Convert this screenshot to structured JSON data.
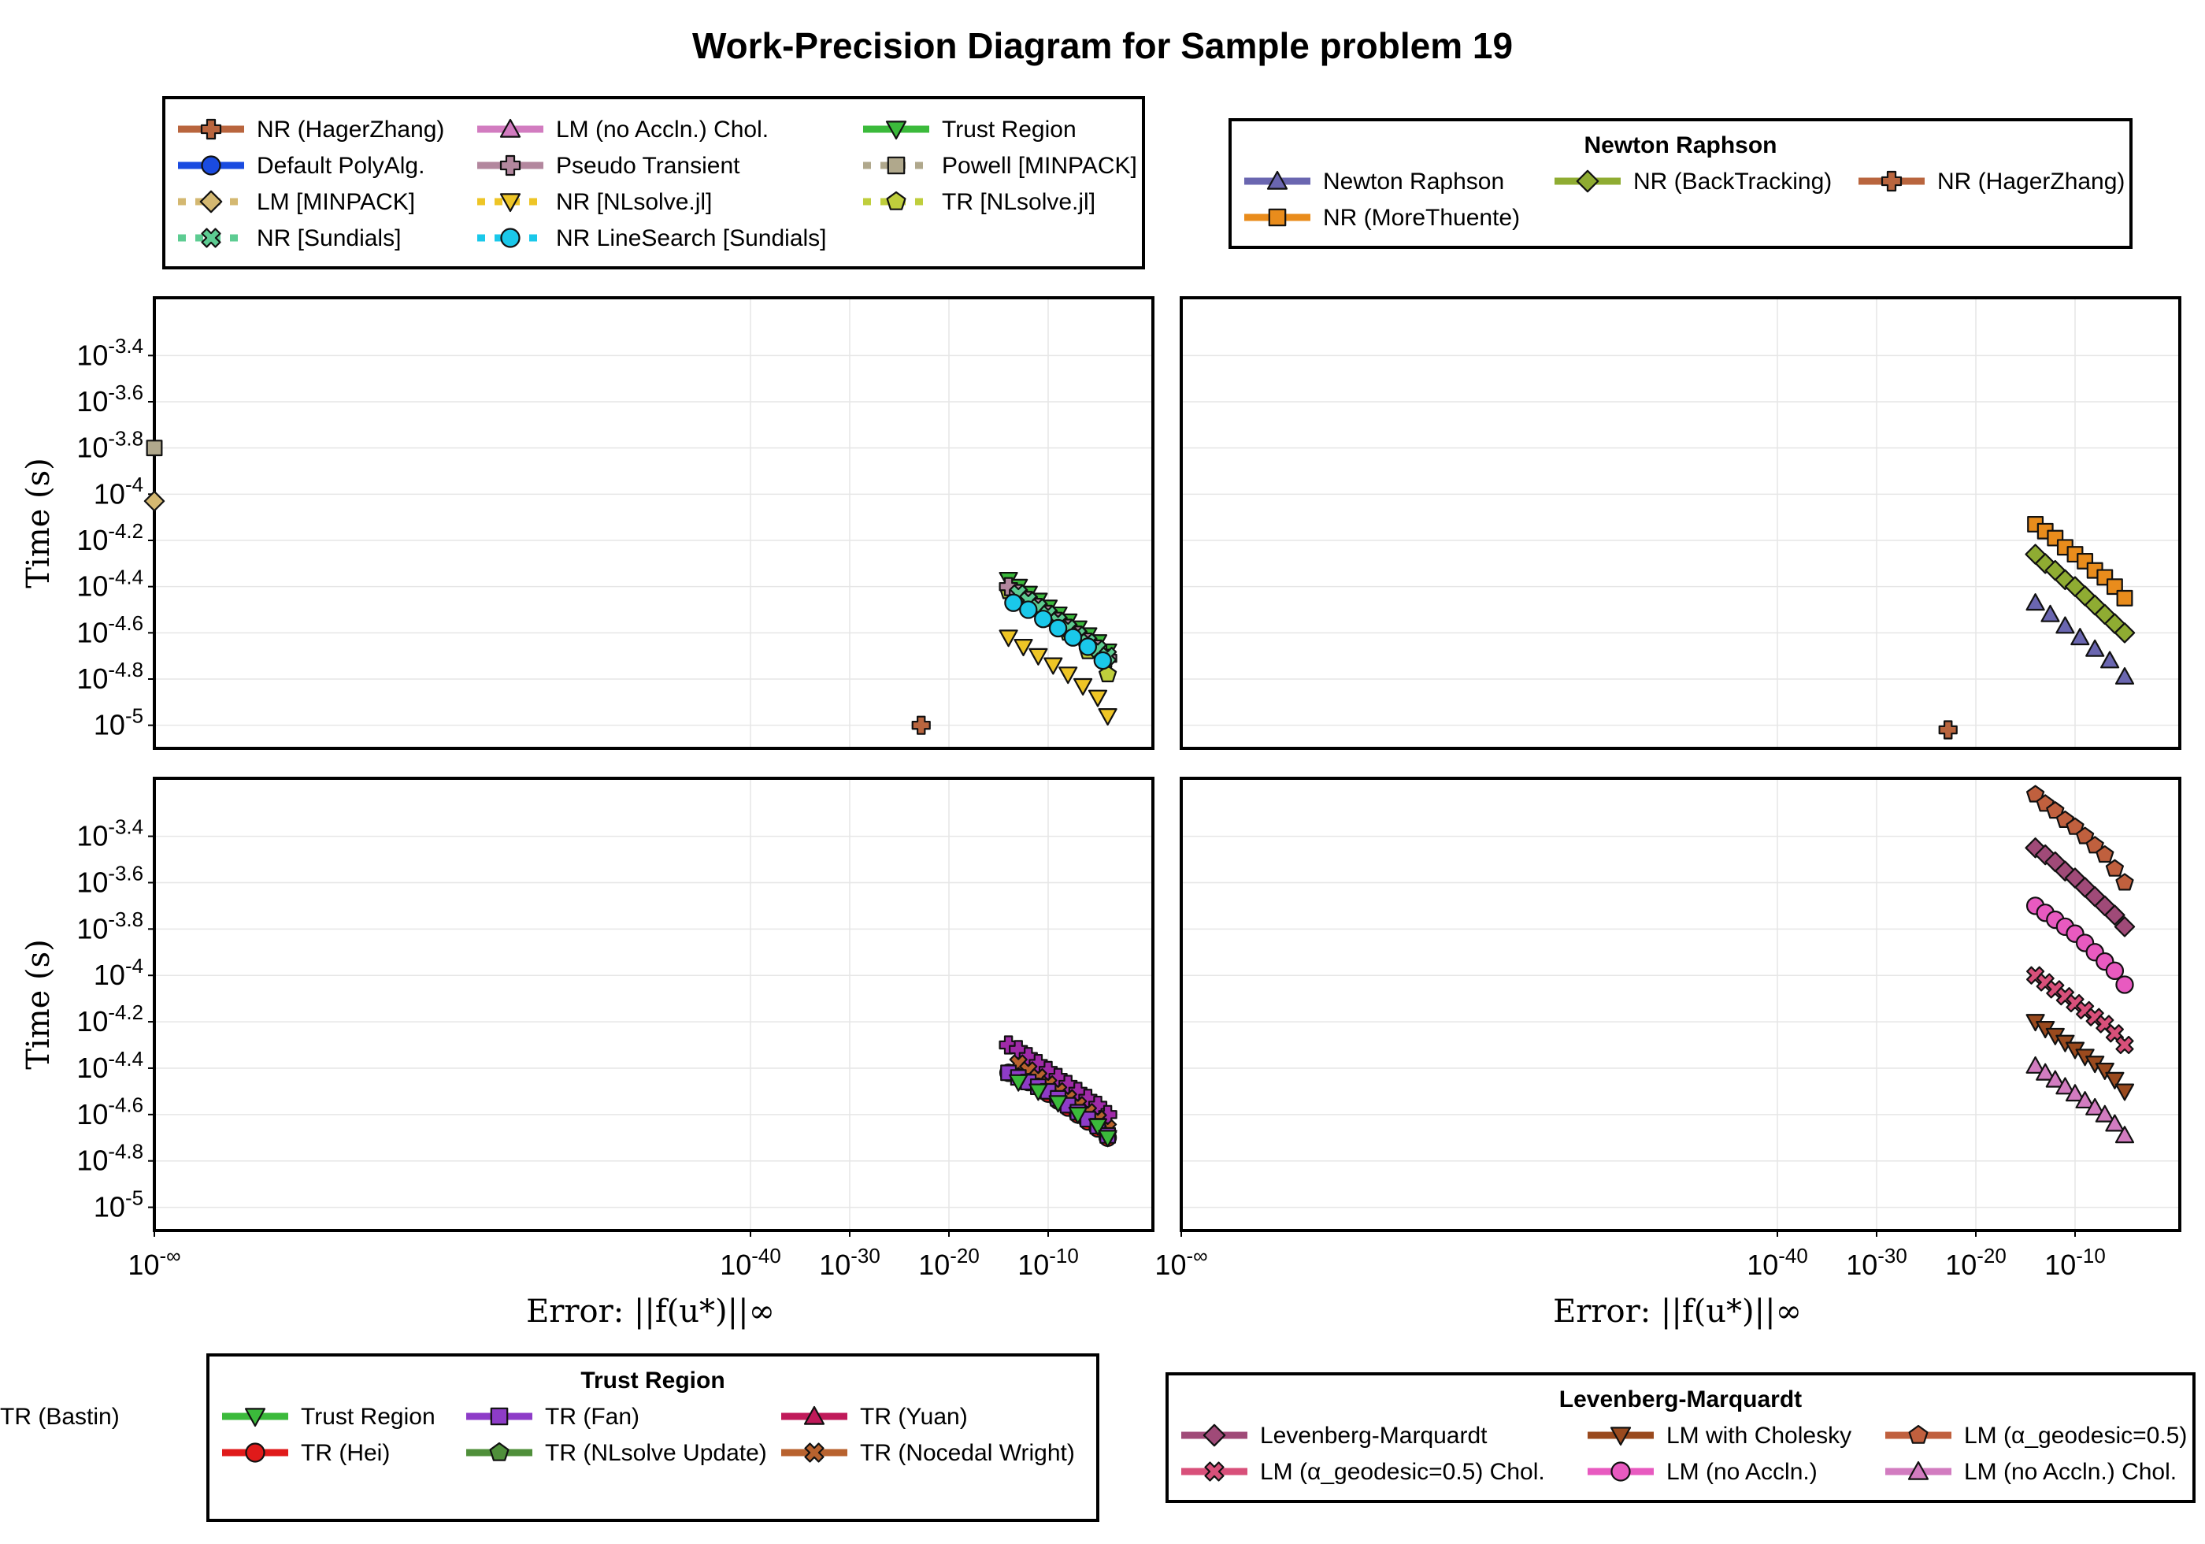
{
  "chart_data": {
    "title": "Work-Precision Diagram for Sample problem 19",
    "type": "scatter",
    "x_scale": "log10",
    "y_scale": "log10",
    "grid": true,
    "xlabel": "Error: ||f(u*)||∞",
    "ylabel": "Time (s)",
    "x_ticks": [
      {
        "value": "-inf",
        "label": "10^-∞"
      },
      {
        "value": -40,
        "label": "10^-40"
      },
      {
        "value": -30,
        "label": "10^-30"
      },
      {
        "value": -20,
        "label": "10^-20"
      },
      {
        "value": -10,
        "label": "10^-10"
      }
    ],
    "legends": {
      "top_left": {
        "title": "",
        "placement": "top-left",
        "entries": [
          {
            "label": "NR (HagerZhang)",
            "color": "#b9653e",
            "marker": "cross",
            "dashed": false
          },
          {
            "label": "Default PolyAlg.",
            "color": "#1a4be0",
            "marker": "circle",
            "dashed": false
          },
          {
            "label": "LM [MINPACK]",
            "color": "#d4b871",
            "marker": "diamond",
            "dashed": true
          },
          {
            "label": "NR [Sundials]",
            "color": "#5dcc92",
            "marker": "xcross",
            "dashed": true
          },
          {
            "label": "LM (no Accln.) Chol.",
            "color": "#d27cc0",
            "marker": "triangle-up",
            "dashed": false
          },
          {
            "label": "Pseudo Transient",
            "color": "#b3879e",
            "marker": "cross",
            "dashed": false
          },
          {
            "label": "NR [NLsolve.jl]",
            "color": "#eec526",
            "marker": "triangle-down",
            "dashed": true
          },
          {
            "label": "NR LineSearch [Sundials]",
            "color": "#1ac8ea",
            "marker": "circle",
            "dashed": true
          },
          {
            "label": "Trust Region",
            "color": "#3bba3b",
            "marker": "triangle-down",
            "dashed": false
          },
          {
            "label": "Powell [MINPACK]",
            "color": "#b0a88c",
            "marker": "square",
            "dashed": true
          },
          {
            "label": "TR [NLsolve.jl]",
            "color": "#bfce3c",
            "marker": "pentagon",
            "dashed": true
          }
        ]
      },
      "top_right": {
        "title": "Newton Raphson",
        "placement": "top-right",
        "entries": [
          {
            "label": "Newton Raphson",
            "color": "#6a66b0",
            "marker": "triangle-up",
            "dashed": false
          },
          {
            "label": "NR (BackTracking)",
            "color": "#8fac32",
            "marker": "diamond",
            "dashed": false
          },
          {
            "label": "NR (HagerZhang)",
            "color": "#b9653e",
            "marker": "cross",
            "dashed": false
          },
          {
            "label": "NR (MoreThuente)",
            "color": "#e98c1c",
            "marker": "square",
            "dashed": false
          }
        ]
      },
      "bottom_left": {
        "title": "Trust Region",
        "placement": "bottom-left",
        "entries": [
          {
            "label": "Trust Region",
            "color": "#3bba3b",
            "marker": "triangle-down",
            "dashed": false
          },
          {
            "label": "TR (Hei)",
            "color": "#e01a1a",
            "marker": "circle",
            "dashed": false
          },
          {
            "label": "TR (Fan)",
            "color": "#8e3cc8",
            "marker": "square",
            "dashed": false
          },
          {
            "label": "TR (NLsolve Update)",
            "color": "#4f8f3a",
            "marker": "pentagon",
            "dashed": false
          },
          {
            "label": "TR (Yuan)",
            "color": "#c01a5a",
            "marker": "triangle-up",
            "dashed": false
          },
          {
            "label": "TR (Nocedal Wright)",
            "color": "#b8622e",
            "marker": "xcross",
            "dashed": false
          },
          {
            "label": "TR (Bastin)",
            "color": "#a02aa8",
            "marker": "cross",
            "dashed": false
          }
        ]
      },
      "bottom_right": {
        "title": "Levenberg-Marquardt",
        "placement": "bottom-right",
        "entries": [
          {
            "label": "Levenberg-Marquardt",
            "color": "#a04a78",
            "marker": "diamond",
            "dashed": false
          },
          {
            "label": "LM (α_geodesic=0.5) Chol.",
            "color": "#d8507a",
            "marker": "xcross",
            "dashed": false
          },
          {
            "label": "LM with Cholesky",
            "color": "#9a4a1e",
            "marker": "triangle-down",
            "dashed": false
          },
          {
            "label": "LM (no Accln.)",
            "color": "#e85ac0",
            "marker": "circle",
            "dashed": false
          },
          {
            "label": "LM (α_geodesic=0.5)",
            "color": "#c0603e",
            "marker": "pentagon",
            "dashed": false
          },
          {
            "label": "LM (no Accln.) Chol.",
            "color": "#d27cc0",
            "marker": "triangle-up",
            "dashed": false
          }
        ]
      }
    },
    "panels": [
      {
        "id": "top-left",
        "ylim": [
          -5.1,
          -3.15
        ],
        "y_ticks": [
          -3.4,
          -3.6,
          -3.8,
          -4,
          -4.2,
          -4.4,
          -4.6,
          -4.8,
          -5
        ],
        "show_xticks": false,
        "show_ylabel": true,
        "show_xlabel": false,
        "series": [
          {
            "name": "Powell [MINPACK]",
            "marker": "square",
            "color": "#b0a88c",
            "x": [
              "-inf"
            ],
            "y": [
              -3.8
            ]
          },
          {
            "name": "LM [MINPACK]",
            "marker": "diamond",
            "color": "#d4b871",
            "x": [
              "-inf"
            ],
            "y": [
              -4.03
            ]
          },
          {
            "name": "NR (HagerZhang)",
            "marker": "cross",
            "color": "#b9653e",
            "x": [
              -22.8
            ],
            "y": [
              -5.0
            ]
          },
          {
            "name": "Trust Region",
            "marker": "triangle-down",
            "color": "#3bba3b",
            "x": [
              -14,
              -13,
              -12,
              -11,
              -10,
              -9,
              -8,
              -7,
              -6,
              -5,
              -4
            ],
            "y": [
              -4.37,
              -4.4,
              -4.43,
              -4.46,
              -4.49,
              -4.52,
              -4.55,
              -4.58,
              -4.61,
              -4.64,
              -4.68
            ]
          },
          {
            "name": "TR [NLsolve.jl]",
            "marker": "pentagon",
            "color": "#bfce3c",
            "x": [
              -14,
              -12,
              -10,
              -8,
              -6,
              -4
            ],
            "y": [
              -4.42,
              -4.48,
              -4.54,
              -4.6,
              -4.68,
              -4.78
            ]
          },
          {
            "name": "Pseudo Transient",
            "marker": "cross",
            "color": "#b3879e",
            "x": [
              -14,
              -13,
              -12,
              -11,
              -10,
              -9,
              -8,
              -7,
              -6,
              -5,
              -4
            ],
            "y": [
              -4.4,
              -4.43,
              -4.46,
              -4.49,
              -4.52,
              -4.55,
              -4.58,
              -4.61,
              -4.64,
              -4.67,
              -4.71
            ]
          },
          {
            "name": "NR [Sundials]",
            "marker": "xcross",
            "color": "#5dcc92",
            "x": [
              -13,
              -12,
              -11,
              -10,
              -9,
              -8,
              -7,
              -6,
              -5,
              -4
            ],
            "y": [
              -4.43,
              -4.46,
              -4.49,
              -4.52,
              -4.55,
              -4.58,
              -4.61,
              -4.64,
              -4.67,
              -4.7
            ]
          },
          {
            "name": "NR LineSearch [Sundials]",
            "marker": "circle",
            "color": "#1ac8ea",
            "x": [
              -13.5,
              -12,
              -10.5,
              -9,
              -7.5,
              -6,
              -4.5
            ],
            "y": [
              -4.47,
              -4.5,
              -4.54,
              -4.58,
              -4.62,
              -4.66,
              -4.72
            ]
          },
          {
            "name": "NR [NLsolve.jl]",
            "marker": "triangle-down",
            "color": "#eec526",
            "x": [
              -14,
              -12.5,
              -11,
              -9.5,
              -8,
              -6.5,
              -5,
              -4
            ],
            "y": [
              -4.62,
              -4.66,
              -4.7,
              -4.74,
              -4.78,
              -4.83,
              -4.88,
              -4.96
            ]
          }
        ]
      },
      {
        "id": "top-right",
        "ylim": [
          -5.1,
          -3.15
        ],
        "y_ticks": [],
        "show_xticks": false,
        "show_ylabel": false,
        "show_xlabel": false,
        "series": [
          {
            "name": "NR (HagerZhang)",
            "marker": "cross",
            "color": "#b9653e",
            "x": [
              -22.8
            ],
            "y": [
              -5.02
            ]
          },
          {
            "name": "NR (MoreThuente)",
            "marker": "square",
            "color": "#e98c1c",
            "x": [
              -14,
              -13,
              -12,
              -11,
              -10,
              -9,
              -8,
              -7,
              -6,
              -5
            ],
            "y": [
              -4.13,
              -4.16,
              -4.19,
              -4.23,
              -4.26,
              -4.29,
              -4.33,
              -4.36,
              -4.4,
              -4.45
            ]
          },
          {
            "name": "NR (BackTracking)",
            "marker": "diamond",
            "color": "#8fac32",
            "x": [
              -14,
              -13,
              -12,
              -11,
              -10,
              -9,
              -8,
              -7,
              -6,
              -5
            ],
            "y": [
              -4.26,
              -4.3,
              -4.33,
              -4.37,
              -4.4,
              -4.44,
              -4.48,
              -4.52,
              -4.56,
              -4.6
            ]
          },
          {
            "name": "Newton Raphson",
            "marker": "triangle-up",
            "color": "#6a66b0",
            "x": [
              -14,
              -12.5,
              -11,
              -9.5,
              -8,
              -6.5,
              -5
            ],
            "y": [
              -4.47,
              -4.52,
              -4.57,
              -4.62,
              -4.67,
              -4.72,
              -4.79
            ]
          }
        ]
      },
      {
        "id": "bottom-left",
        "ylim": [
          -5.1,
          -3.15
        ],
        "y_ticks": [
          -3.4,
          -3.6,
          -3.8,
          -4,
          -4.2,
          -4.4,
          -4.6,
          -4.8,
          -5
        ],
        "show_xticks": true,
        "show_ylabel": true,
        "show_xlabel": true,
        "series": [
          {
            "name": "TR (Bastin)",
            "marker": "cross",
            "color": "#a02aa8",
            "x": [
              -14,
              -13,
              -12,
              -11,
              -10,
              -9,
              -8,
              -7,
              -6,
              -5,
              -4
            ],
            "y": [
              -4.3,
              -4.32,
              -4.35,
              -4.38,
              -4.41,
              -4.44,
              -4.47,
              -4.5,
              -4.53,
              -4.56,
              -4.6
            ]
          },
          {
            "name": "TR (Nocedal Wright)",
            "marker": "xcross",
            "color": "#b8622e",
            "x": [
              -13,
              -12,
              -11,
              -10,
              -9,
              -8,
              -7,
              -6,
              -5,
              -4
            ],
            "y": [
              -4.38,
              -4.41,
              -4.44,
              -4.47,
              -4.5,
              -4.53,
              -4.56,
              -4.59,
              -4.62,
              -4.66
            ]
          },
          {
            "name": "TR (Hei)",
            "marker": "circle",
            "color": "#e01a1a",
            "x": [
              -14,
              -13,
              -12,
              -11,
              -10,
              -9,
              -8,
              -7,
              -6,
              -5,
              -4
            ],
            "y": [
              -4.42,
              -4.44,
              -4.46,
              -4.48,
              -4.51,
              -4.54,
              -4.57,
              -4.6,
              -4.63,
              -4.66,
              -4.7
            ]
          },
          {
            "name": "TR (Fan)",
            "marker": "square",
            "color": "#8e3cc8",
            "x": [
              -14,
              -13,
              -12,
              -11,
              -10,
              -9,
              -8,
              -7,
              -6,
              -5,
              -4
            ],
            "y": [
              -4.42,
              -4.44,
              -4.46,
              -4.48,
              -4.5,
              -4.53,
              -4.56,
              -4.59,
              -4.62,
              -4.65,
              -4.69
            ]
          },
          {
            "name": "Trust Region",
            "marker": "triangle-down",
            "color": "#3bba3b",
            "x": [
              -13,
              -11,
              -9,
              -7,
              -5,
              -4
            ],
            "y": [
              -4.46,
              -4.5,
              -4.55,
              -4.6,
              -4.65,
              -4.7
            ]
          }
        ]
      },
      {
        "id": "bottom-right",
        "ylim": [
          -5.1,
          -3.15
        ],
        "y_ticks": [],
        "show_xticks": true,
        "show_ylabel": false,
        "show_xlabel": true,
        "series": [
          {
            "name": "LM (α_geodesic=0.5)",
            "marker": "pentagon",
            "color": "#c0603e",
            "x": [
              -14,
              -13,
              -12,
              -11,
              -10,
              -9,
              -8,
              -7,
              -6,
              -5
            ],
            "y": [
              -3.22,
              -3.26,
              -3.29,
              -3.33,
              -3.36,
              -3.4,
              -3.44,
              -3.48,
              -3.54,
              -3.6
            ]
          },
          {
            "name": "Levenberg-Marquardt",
            "marker": "diamond",
            "color": "#a04a78",
            "x": [
              -14,
              -13,
              -12,
              -11,
              -10,
              -9,
              -8,
              -7,
              -6,
              -5
            ],
            "y": [
              -3.45,
              -3.48,
              -3.51,
              -3.55,
              -3.58,
              -3.62,
              -3.66,
              -3.7,
              -3.74,
              -3.79
            ]
          },
          {
            "name": "LM (no Accln.)",
            "marker": "circle",
            "color": "#e85ac0",
            "x": [
              -14,
              -13,
              -12,
              -11,
              -10,
              -9,
              -8,
              -7,
              -6,
              -5
            ],
            "y": [
              -3.7,
              -3.73,
              -3.76,
              -3.79,
              -3.82,
              -3.86,
              -3.9,
              -3.94,
              -3.98,
              -4.04
            ]
          },
          {
            "name": "LM (α_geodesic=0.5) Chol.",
            "marker": "xcross",
            "color": "#d8507a",
            "x": [
              -14,
              -13,
              -12,
              -11,
              -10,
              -9,
              -8,
              -7,
              -6,
              -5
            ],
            "y": [
              -4.0,
              -4.03,
              -4.06,
              -4.09,
              -4.12,
              -4.15,
              -4.18,
              -4.21,
              -4.25,
              -4.3
            ]
          },
          {
            "name": "LM with Cholesky",
            "marker": "triangle-down",
            "color": "#9a4a1e",
            "x": [
              -14,
              -13,
              -12,
              -11,
              -10,
              -9,
              -8,
              -7,
              -6,
              -5
            ],
            "y": [
              -4.2,
              -4.23,
              -4.26,
              -4.29,
              -4.32,
              -4.35,
              -4.38,
              -4.41,
              -4.45,
              -4.5
            ]
          },
          {
            "name": "LM (no Accln.) Chol.",
            "marker": "triangle-up",
            "color": "#d27cc0",
            "x": [
              -14,
              -13,
              -12,
              -11,
              -10,
              -9,
              -8,
              -7,
              -6,
              -5
            ],
            "y": [
              -4.39,
              -4.42,
              -4.45,
              -4.48,
              -4.51,
              -4.54,
              -4.57,
              -4.6,
              -4.64,
              -4.69
            ]
          }
        ]
      }
    ]
  }
}
